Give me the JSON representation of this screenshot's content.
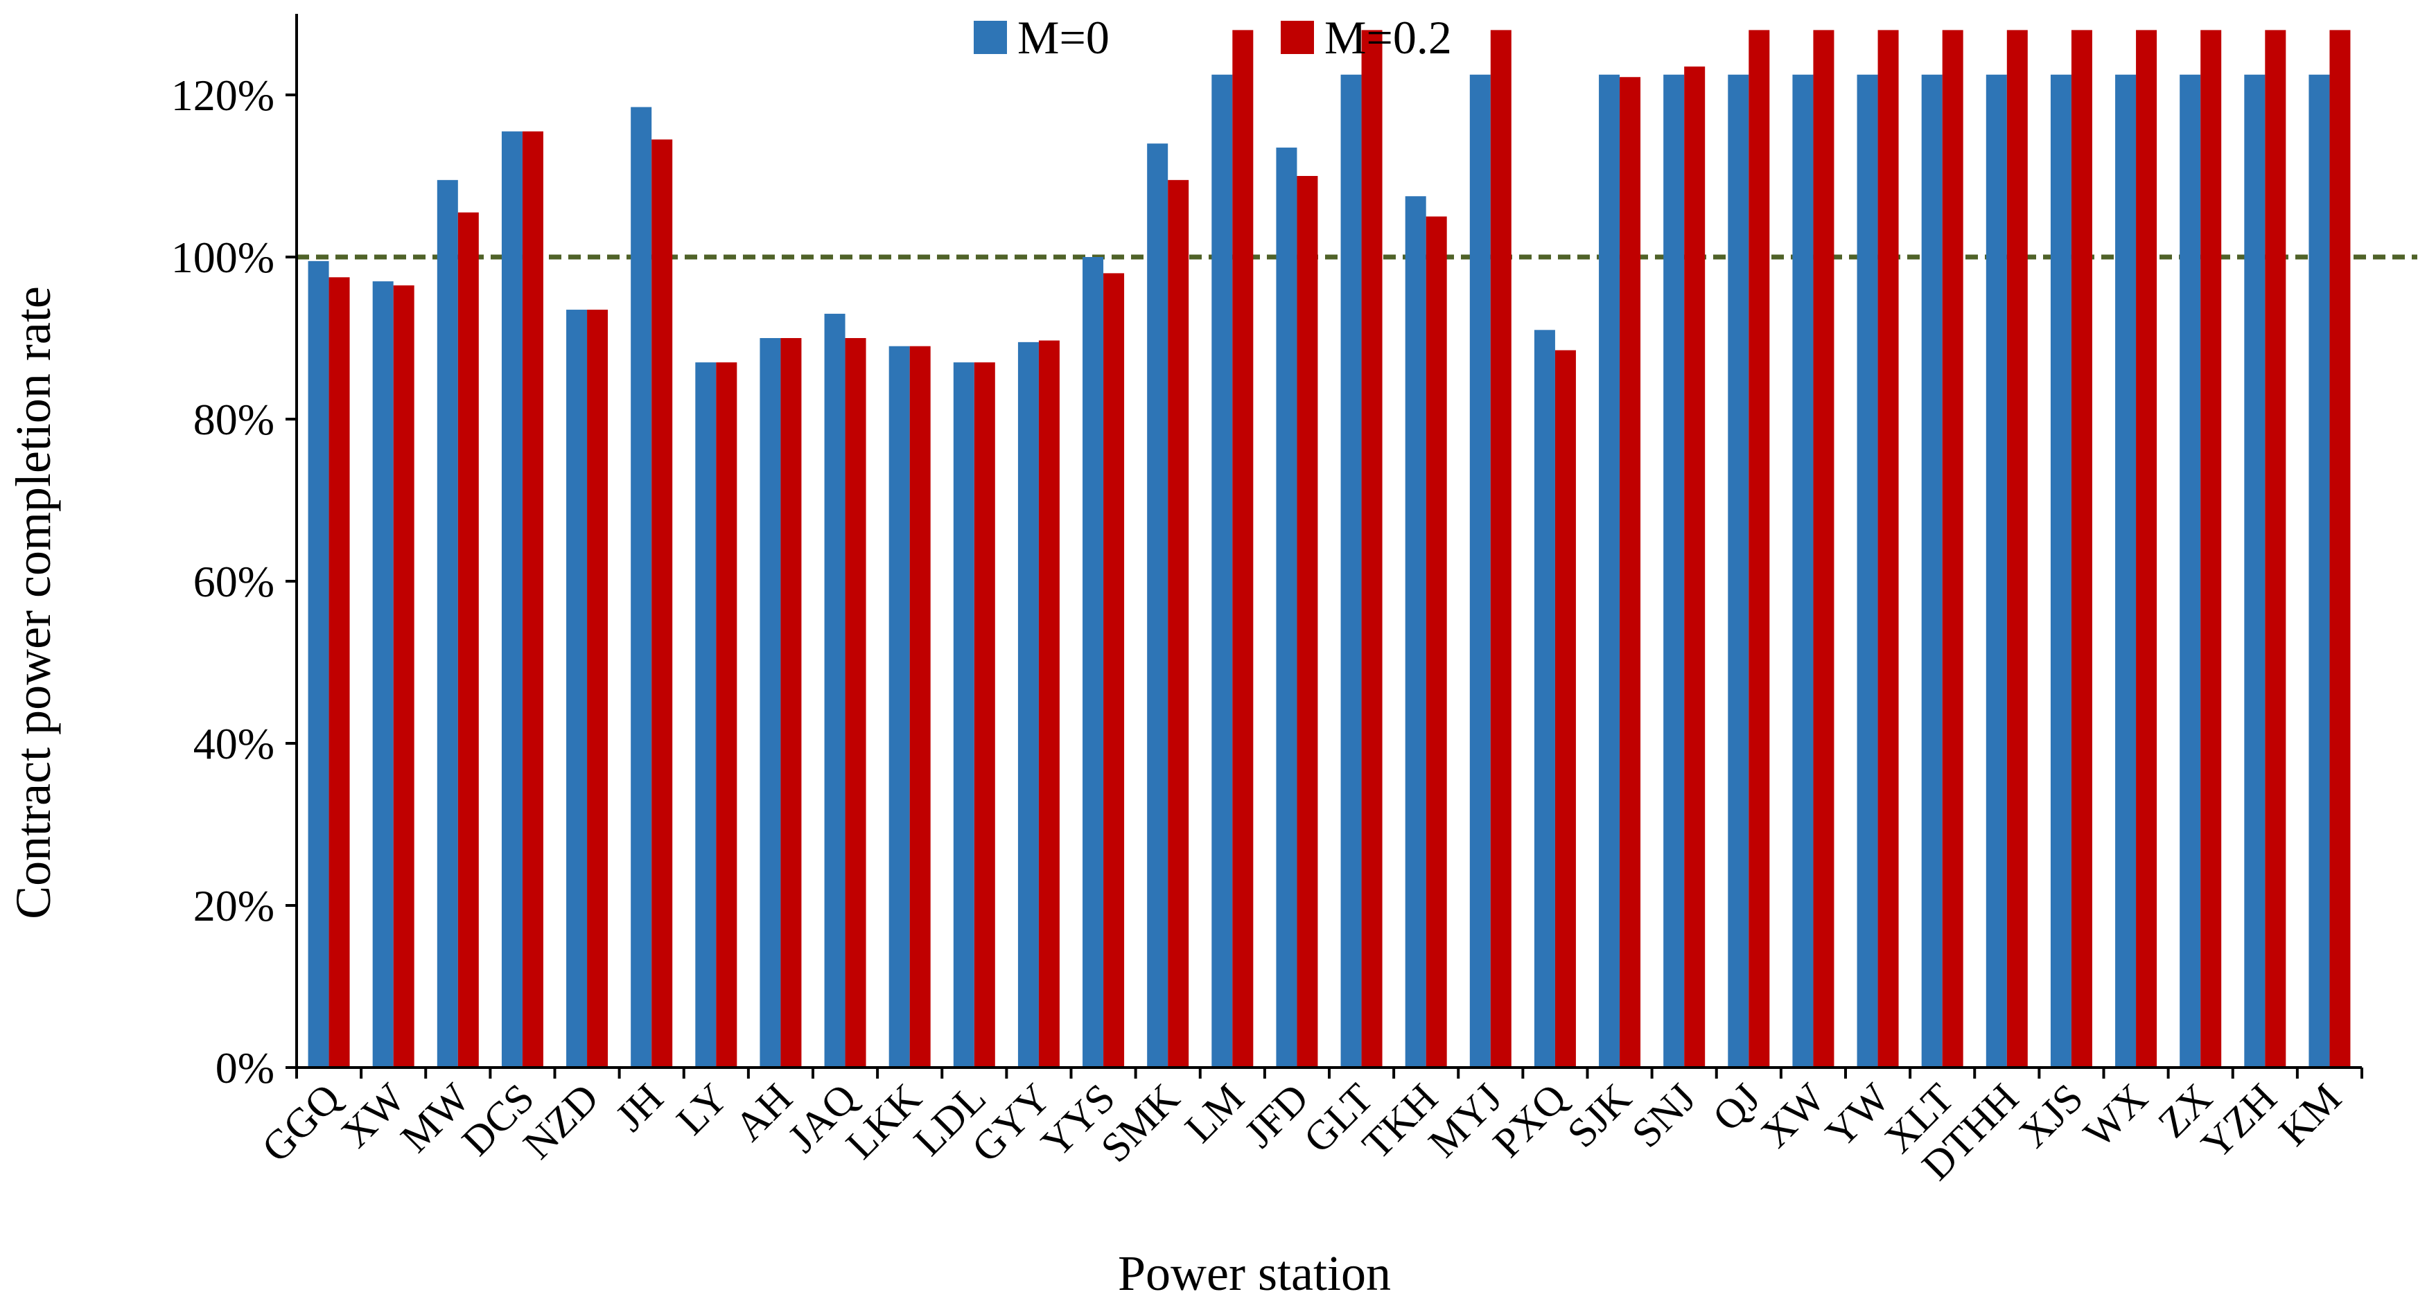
{
  "chart_data": {
    "type": "bar",
    "title": "",
    "xlabel": "Power station",
    "ylabel": "Contract  power completion rate",
    "ylim": [
      0,
      1.3
    ],
    "yticks": [
      0,
      0.2,
      0.4,
      0.6,
      0.8,
      1.0,
      1.2
    ],
    "ytick_labels": [
      "0%",
      "20%",
      "40%",
      "60%",
      "80%",
      "100%",
      "120%"
    ],
    "reference_line": {
      "value": 1.0,
      "style": "dashed",
      "color": "#4f6228"
    },
    "legend_position": "top-center",
    "categories": [
      "GGQ",
      "XW",
      "MW",
      "DCS",
      "NZD",
      "JH",
      "LY",
      "AH",
      "JAQ",
      "LKK",
      "LDL",
      "GYY",
      "YYS",
      "SMK",
      "LM",
      "JFD",
      "GLT",
      "TKH",
      "MYJ",
      "PXQ",
      "SJK",
      "SNJ",
      "QJ",
      "XW",
      "YW",
      "XLT",
      "DTHH",
      "XJS",
      "WX",
      "ZX",
      "YZH",
      "KM"
    ],
    "series": [
      {
        "name": "M=0",
        "color": "#2e75b6",
        "values": [
          0.995,
          0.97,
          1.095,
          1.155,
          0.935,
          1.185,
          0.87,
          0.9,
          0.93,
          0.89,
          0.87,
          0.895,
          1.0,
          1.14,
          1.225,
          1.135,
          1.225,
          1.075,
          1.225,
          0.91,
          1.225,
          1.225,
          1.225,
          1.225,
          1.225,
          1.225,
          1.225,
          1.225,
          1.225,
          1.225,
          1.225,
          1.225
        ]
      },
      {
        "name": "M=0.2",
        "color": "#c00000",
        "values": [
          0.975,
          0.965,
          1.055,
          1.155,
          0.935,
          1.145,
          0.87,
          0.9,
          0.9,
          0.89,
          0.87,
          0.897,
          0.98,
          1.095,
          1.28,
          1.1,
          1.28,
          1.05,
          1.28,
          0.885,
          1.222,
          1.235,
          1.28,
          1.28,
          1.28,
          1.28,
          1.28,
          1.28,
          1.28,
          1.28,
          1.28,
          1.28
        ]
      }
    ]
  }
}
